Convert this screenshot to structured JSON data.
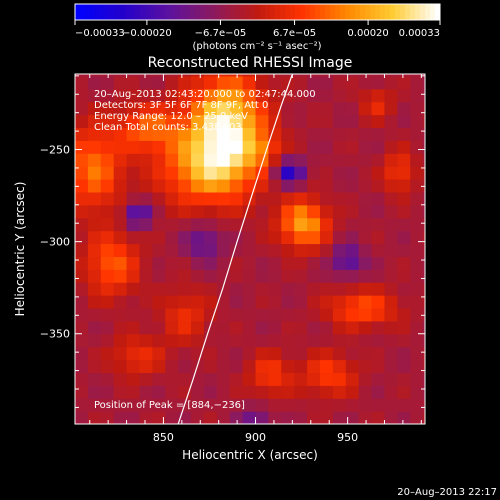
{
  "chart_data": {
    "type": "heatmap",
    "title": "Reconstructed RHESSI Image",
    "xlabel": "Heliocentric X (arcsec)",
    "ylabel": "Heliocentric Y (arcsec)",
    "xlim": [
      802,
      992
    ],
    "ylim": [
      -399,
      -209
    ],
    "x_ticks": [
      850,
      900,
      950
    ],
    "x_tick_labels": [
      "850",
      "900",
      "950"
    ],
    "y_ticks": [
      -250,
      -300,
      -350
    ],
    "y_tick_labels": [
      "−250",
      "−300",
      "−350"
    ],
    "colorbar": {
      "ticks": [
        -0.00033,
        -0.0002,
        -6.7e-05,
        6.7e-05,
        0.0002,
        0.00033
      ],
      "tick_labels": [
        "−0.00033",
        "−0.00020",
        "−6.7e−05",
        "6.7e−05",
        "0.00020",
        "0.00033"
      ],
      "units_label": "(photons cm⁻² s⁻¹ asec⁻²)",
      "colors": [
        "#0000ff",
        "#2200cc",
        "#5a10a0",
        "#8a1a60",
        "#c01a10",
        "#ff3300",
        "#ff8800",
        "#ffcc33",
        "#ffffff"
      ]
    },
    "annotations": [
      "20–Aug–2013 02:43:20.000 to 02:47:44.000",
      "Detectors: 3F 5F 6F 7F 8F 9F, Att 0",
      "Energy Range: 12.0 – 25.0 keV",
      "Clean    Total counts: 3.43E+03"
    ],
    "peak": {
      "label": "Position of Peak = [884,−236]",
      "x": 884,
      "y": -236
    },
    "limb_curve": {
      "x": [
        858,
        866,
        874,
        882,
        890,
        898,
        906,
        914,
        920
      ],
      "y": [
        -399,
        -375,
        -350,
        -326,
        -300,
        -275,
        -250,
        -226,
        -209
      ]
    },
    "blobs": [
      {
        "x": 884,
        "y": -236,
        "intensity": 0.00033,
        "sx": 14,
        "sy": 18
      },
      {
        "x": 874,
        "y": -260,
        "intensity": 0.00022,
        "sx": 18,
        "sy": 14
      },
      {
        "x": 926,
        "y": -290,
        "intensity": 0.00024,
        "sx": 9,
        "sy": 9
      },
      {
        "x": 812,
        "y": -260,
        "intensity": 0.00018,
        "sx": 11,
        "sy": 16
      },
      {
        "x": 842,
        "y": -238,
        "intensity": 0.00016,
        "sx": 12,
        "sy": 9
      },
      {
        "x": 822,
        "y": -312,
        "intensity": 0.00016,
        "sx": 10,
        "sy": 12
      },
      {
        "x": 958,
        "y": -336,
        "intensity": 0.00015,
        "sx": 13,
        "sy": 7
      },
      {
        "x": 940,
        "y": -372,
        "intensity": 0.00013,
        "sx": 10,
        "sy": 8
      },
      {
        "x": 908,
        "y": -372,
        "intensity": 0.00012,
        "sx": 8,
        "sy": 8
      },
      {
        "x": 978,
        "y": -262,
        "intensity": 0.00012,
        "sx": 6,
        "sy": 8
      },
      {
        "x": 862,
        "y": -340,
        "intensity": 0.0001,
        "sx": 9,
        "sy": 10
      },
      {
        "x": 836,
        "y": -362,
        "intensity": 0.0001,
        "sx": 10,
        "sy": 8
      },
      {
        "x": 904,
        "y": -250,
        "intensity": 9e-05,
        "sx": 6,
        "sy": 6
      },
      {
        "x": 966,
        "y": -225,
        "intensity": 9e-05,
        "sx": 6,
        "sy": 6
      },
      {
        "x": 872,
        "y": -300,
        "intensity": -0.00012,
        "sx": 7,
        "sy": 7
      },
      {
        "x": 918,
        "y": -262,
        "intensity": -0.0002,
        "sx": 6,
        "sy": 5
      },
      {
        "x": 836,
        "y": -285,
        "intensity": -0.00018,
        "sx": 5,
        "sy": 5
      },
      {
        "x": 950,
        "y": -310,
        "intensity": -0.00014,
        "sx": 6,
        "sy": 6
      },
      {
        "x": 900,
        "y": -395,
        "intensity": -0.0001,
        "sx": 6,
        "sy": 4
      }
    ]
  },
  "footer": {
    "timestamp": "20–Aug–2013 22:17"
  }
}
